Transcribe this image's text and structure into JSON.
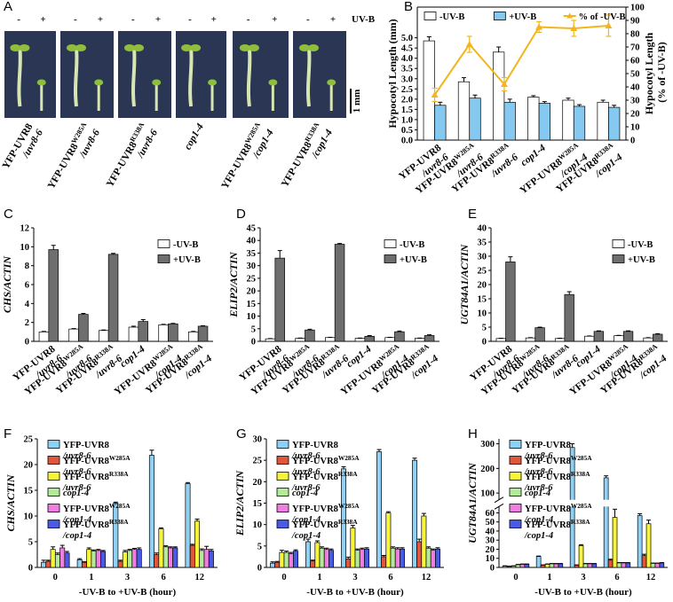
{
  "panel_labels": [
    "A",
    "B",
    "C",
    "D",
    "E",
    "F",
    "G",
    "H"
  ],
  "photo_panel": {
    "minus": "-",
    "plus": "+",
    "treatment": "UV-B",
    "scale_bar": "1 mm",
    "genotypes": [
      "YFP-UVR8/uvr8-6",
      "YFP-UVR8W285A/uvr8-6",
      "YFP-UVR8R338A/uvr8-6",
      "cop1-4",
      "YFP-UVR8W285A/cop1-4",
      "YFP-UVR8R338A/cop1-4"
    ]
  },
  "chart_data": [
    {
      "type": "bar",
      "ylabel": "Hypocotyl Length (mm)",
      "y2label": "Hypocotyl Length (% of -UV-B)",
      "categories": [
        "YFP-UVR8/uvr8-6",
        "YFP-UVR8W285A/uvr8-6",
        "YFP-UVR8R338A/uvr8-6",
        "cop1-4",
        "YFP-UVR8W285A/cop1-4",
        "YFP-UVR8R338A/cop1-4"
      ],
      "series": [
        {
          "name": "-UV-B",
          "color": "#ffffff",
          "values": [
            4.85,
            2.85,
            4.3,
            2.1,
            1.95,
            1.85
          ],
          "errors": [
            0.2,
            0.2,
            0.25,
            0.07,
            0.1,
            0.1
          ]
        },
        {
          "name": "+UV-B",
          "color": "#85c8f0",
          "values": [
            1.7,
            2.05,
            1.85,
            1.8,
            1.65,
            1.6
          ],
          "errors": [
            0.15,
            0.15,
            0.15,
            0.08,
            0.08,
            0.1
          ]
        },
        {
          "name": "% of -UV-B",
          "type": "line",
          "axis": "y2",
          "color": "#f2b51c",
          "values": [
            34,
            72,
            42,
            85,
            84,
            86
          ],
          "errors": [
            5,
            6,
            5,
            4,
            6,
            8
          ]
        }
      ],
      "ylim": [
        0,
        6.5
      ],
      "yticks": [
        {
          "value": 0,
          "label": "0.0"
        },
        0.5,
        {
          "value": 1,
          "label": "1.0"
        },
        1.5,
        {
          "value": 2,
          "label": "2.0"
        },
        2.5,
        {
          "value": 3,
          "label": "3.0"
        },
        3.5,
        {
          "value": 4,
          "label": "4.0"
        },
        4.5,
        {
          "value": 5,
          "label": "5.0"
        }
      ],
      "y2lim": [
        0,
        100
      ],
      "y2ticks": [
        0,
        10,
        20,
        30,
        40,
        50,
        60,
        70,
        80,
        90,
        100
      ],
      "legend": "top"
    },
    {
      "type": "bar",
      "ylabel": "CHS/ACTIN",
      "categories": [
        "YFP-UVR8/uvr8-6",
        "YFP-UVR8W285A/uvr8-6",
        "YFP-UVR8R338A/uvr8-6",
        "cop1-4",
        "YFP-UVR8W285A/cop1-4",
        "YFP-UVR8R338A/cop1-4"
      ],
      "series": [
        {
          "name": "-UV-B",
          "color": "#ffffff",
          "values": [
            1.0,
            1.3,
            1.15,
            1.5,
            1.75,
            1.0
          ],
          "errors": [
            0.05,
            0.05,
            0.05,
            0.1,
            0.05,
            0.05
          ]
        },
        {
          "name": "+UV-B",
          "color": "#6e6e6e",
          "values": [
            9.7,
            2.85,
            9.2,
            2.1,
            1.85,
            1.6
          ],
          "errors": [
            0.45,
            0.1,
            0.1,
            0.2,
            0.05,
            0.05
          ]
        }
      ],
      "ylim": [
        0,
        12
      ],
      "yticks": [
        0,
        2,
        4,
        6,
        8,
        10,
        12
      ],
      "legend": "upper right"
    },
    {
      "type": "bar",
      "ylabel": "ELIP2/ACTIN",
      "categories": [
        "YFP-UVR8/uvr8-6",
        "YFP-UVR8W285A/uvr8-6",
        "YFP-UVR8R338A/uvr8-6",
        "cop1-4",
        "YFP-UVR8W285A/cop1-4",
        "YFP-UVR8R338A/cop1-4"
      ],
      "series": [
        {
          "name": "-UV-B",
          "color": "#ffffff",
          "values": [
            1.0,
            1.2,
            1.5,
            1.2,
            1.5,
            1.2
          ],
          "errors": [
            0.1,
            0.1,
            0.1,
            0.1,
            0.1,
            0.1
          ]
        },
        {
          "name": "+UV-B",
          "color": "#6e6e6e",
          "values": [
            33,
            4.5,
            38.5,
            2.0,
            3.8,
            2.3
          ],
          "errors": [
            3,
            0.3,
            0.3,
            0.3,
            0.3,
            0.3
          ]
        }
      ],
      "ylim": [
        0,
        45
      ],
      "yticks": [
        0,
        5,
        10,
        15,
        20,
        25,
        30,
        35,
        40,
        45
      ],
      "legend": "upper right"
    },
    {
      "type": "bar",
      "ylabel": "UGT84A1/ACTIN",
      "categories": [
        "YFP-UVR8/uvr8-6",
        "YFP-UVR8W285A/uvr8-6",
        "YFP-UVR8R338A/uvr8-6",
        "cop1-4",
        "YFP-UVR8W285A/cop1-4",
        "YFP-UVR8R338A/cop1-4"
      ],
      "series": [
        {
          "name": "-UV-B",
          "color": "#ffffff",
          "values": [
            1.0,
            1.2,
            1.0,
            1.8,
            2.0,
            1.2
          ],
          "errors": [
            0.1,
            0.1,
            0.1,
            0.1,
            0.1,
            0.1
          ]
        },
        {
          "name": "+UV-B",
          "color": "#6e6e6e",
          "values": [
            28,
            4.8,
            16.5,
            3.5,
            3.5,
            2.5
          ],
          "errors": [
            1.8,
            0.2,
            1.0,
            0.2,
            0.2,
            0.2
          ]
        }
      ],
      "ylim": [
        0,
        40
      ],
      "yticks": [
        0,
        5,
        10,
        15,
        20,
        25,
        30,
        35,
        40
      ],
      "legend": "upper right"
    },
    {
      "type": "bar",
      "ylabel": "CHS/ACTIN",
      "xlabel": "-UV-B to +UV-B (hour)",
      "categories": [
        "0",
        "1",
        "3",
        "6",
        "12"
      ],
      "series": [
        {
          "name": "YFP-UVR8/uvr8-6",
          "color": "#8fd0f5",
          "values": [
            1.0,
            1.5,
            12.5,
            21.8,
            16.3
          ],
          "errors": [
            0.4,
            0.2,
            0.2,
            1.0,
            0.2
          ]
        },
        {
          "name": "YFP-UVR8W285A/uvr8-6",
          "color": "#e0563a",
          "values": [
            1.2,
            1.0,
            1.2,
            2.5,
            4.3
          ],
          "errors": [
            0.2,
            0.1,
            0.2,
            0.3,
            0.2
          ]
        },
        {
          "name": "YFP-UVR8R338A/uvr8-6",
          "color": "#f7f53a",
          "values": [
            3.5,
            3.5,
            3.0,
            7.5,
            9.0
          ],
          "errors": [
            0.5,
            0.3,
            0.3,
            0.2,
            0.4
          ]
        },
        {
          "name": "cop1-4",
          "color": "#b4eb9a",
          "values": [
            2.5,
            3.2,
            3.3,
            4.0,
            3.3
          ],
          "errors": [
            0.3,
            0.2,
            0.2,
            0.2,
            0.3
          ]
        },
        {
          "name": "YFP-UVR8W285A/cop1-4",
          "color": "#f07ee0",
          "values": [
            3.8,
            3.3,
            3.5,
            3.8,
            3.5
          ],
          "errors": [
            0.5,
            0.2,
            0.2,
            0.2,
            0.6
          ]
        },
        {
          "name": "YFP-UVR8R338A/cop1-4",
          "color": "#4a5ae6",
          "values": [
            2.8,
            3.1,
            3.5,
            3.8,
            3.2
          ],
          "errors": [
            0.3,
            0.2,
            0.3,
            0.2,
            0.3
          ]
        }
      ],
      "ylim": [
        0,
        25
      ],
      "yticks": [
        0,
        5,
        10,
        15,
        20,
        25
      ],
      "legend": "upper left"
    },
    {
      "type": "bar",
      "ylabel": "ELIP2/ACTIN",
      "xlabel": "-UV-B to +UV-B (hour)",
      "categories": [
        "0",
        "1",
        "3",
        "6",
        "12"
      ],
      "series": [
        {
          "name": "YFP-UVR8/uvr8-6",
          "color": "#8fd0f5",
          "values": [
            1.0,
            6.0,
            23,
            27,
            25
          ],
          "errors": [
            0.3,
            0.6,
            0.5,
            0.5,
            0.5
          ]
        },
        {
          "name": "YFP-UVR8W285A/uvr8-6",
          "color": "#e0563a",
          "values": [
            1.2,
            1.5,
            2.0,
            2.5,
            6.0
          ],
          "errors": [
            0.2,
            0.2,
            0.4,
            0.3,
            0.6
          ]
        },
        {
          "name": "YFP-UVR8R338A/uvr8-6",
          "color": "#f7f53a",
          "values": [
            3.5,
            5.8,
            9.2,
            12.7,
            12.0
          ],
          "errors": [
            0.5,
            0.4,
            0.6,
            0.3,
            0.6
          ]
        },
        {
          "name": "cop1-4",
          "color": "#b4eb9a",
          "values": [
            3.5,
            4.5,
            4.0,
            4.5,
            4.5
          ],
          "errors": [
            0.3,
            0.3,
            0.3,
            0.3,
            0.3
          ]
        },
        {
          "name": "YFP-UVR8W285A/cop1-4",
          "color": "#f07ee0",
          "values": [
            3.2,
            4.2,
            4.2,
            4.3,
            4.0
          ],
          "errors": [
            0.3,
            0.3,
            0.3,
            0.3,
            0.3
          ]
        },
        {
          "name": "YFP-UVR8R338A/cop1-4",
          "color": "#4a5ae6",
          "values": [
            3.8,
            4.0,
            4.3,
            4.3,
            4.3
          ],
          "errors": [
            0.3,
            0.3,
            0.3,
            0.3,
            0.3
          ]
        }
      ],
      "ylim": [
        0,
        30
      ],
      "yticks": [
        0,
        5,
        10,
        15,
        20,
        25,
        30
      ],
      "legend": "upper left"
    },
    {
      "type": "bar",
      "ylabel": "UGT84A1/ACTIN",
      "xlabel": "-UV-B to +UV-B (hour)",
      "categories": [
        "0",
        "1",
        "3",
        "6",
        "12"
      ],
      "series": [
        {
          "name": "YFP-UVR8/uvr8-6",
          "color": "#8fd0f5",
          "values": [
            1.5,
            12,
            285,
            162,
            57
          ],
          "errors": [
            0.3,
            0.5,
            15,
            8,
            2
          ]
        },
        {
          "name": "YFP-UVR8W285A/uvr8-6",
          "color": "#e0563a",
          "values": [
            1.2,
            2.5,
            2.5,
            8,
            13
          ],
          "errors": [
            0.2,
            0.3,
            0.3,
            1,
            1.5
          ]
        },
        {
          "name": "YFP-UVR8R338A/uvr8-6",
          "color": "#f7f53a",
          "values": [
            1.5,
            3.5,
            24,
            55,
            48
          ],
          "errors": [
            0.3,
            0.3,
            1,
            9,
            4
          ]
        },
        {
          "name": "cop1-4",
          "color": "#b4eb9a",
          "values": [
            3,
            4,
            4,
            5,
            4.5
          ],
          "errors": [
            0.3,
            0.3,
            0.3,
            0.3,
            0.3
          ]
        },
        {
          "name": "YFP-UVR8W285A/cop1-4",
          "color": "#f07ee0",
          "values": [
            3.5,
            4,
            4,
            5,
            4.5
          ],
          "errors": [
            0.3,
            0.3,
            0.3,
            0.3,
            0.3
          ]
        },
        {
          "name": "YFP-UVR8R338A/cop1-4",
          "color": "#4a5ae6",
          "values": [
            3.5,
            4,
            4,
            5,
            5
          ],
          "errors": [
            0.3,
            0.3,
            0.3,
            0.3,
            0.3
          ]
        }
      ],
      "ylim": [
        0,
        320
      ],
      "ybreak": [
        65,
        80
      ],
      "yticks": [
        0,
        10,
        20,
        30,
        40,
        50,
        60,
        100,
        200,
        300
      ],
      "legend": "upper left"
    }
  ]
}
